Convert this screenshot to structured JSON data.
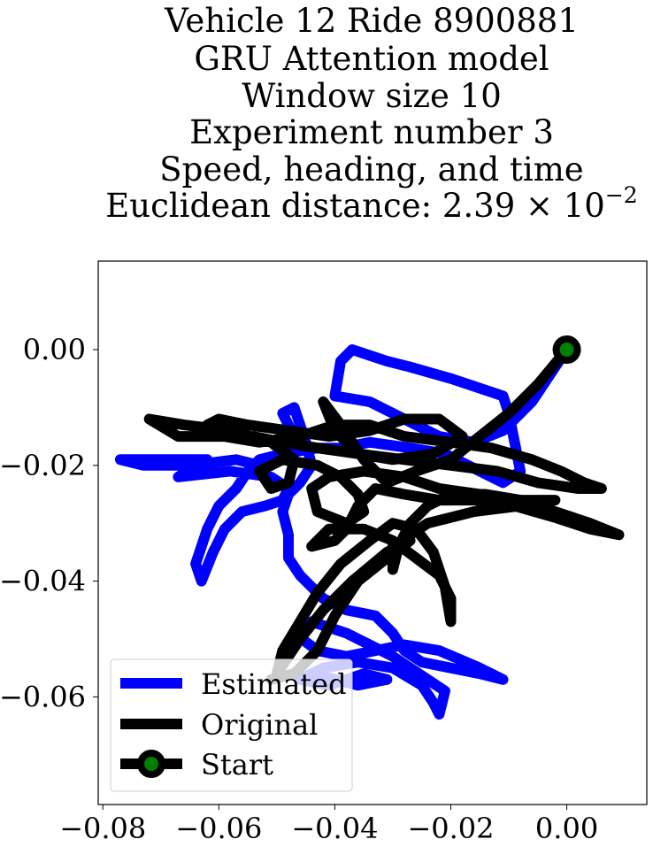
{
  "chart_data": {
    "type": "line",
    "title_lines": [
      "Vehicle 12 Ride 8900881",
      "GRU Attention model",
      "Window size 10",
      "Experiment number 3",
      "Speed, heading, and time"
    ],
    "title_distance_prefix": "Euclidean distance: 2.39 × 10",
    "title_distance_exponent": "−2",
    "xlim": [
      -0.0808,
      0.0138
    ],
    "ylim": [
      -0.0786,
      0.0153
    ],
    "xticks": [
      -0.08,
      -0.06,
      -0.04,
      -0.02,
      0.0
    ],
    "xtick_labels": [
      "−0.08",
      "−0.06",
      "−0.04",
      "−0.02",
      "0.00"
    ],
    "yticks": [
      0.0,
      -0.02,
      -0.04,
      -0.06
    ],
    "ytick_labels": [
      "0.00",
      "−0.02",
      "−0.04",
      "−0.06"
    ],
    "grid": false,
    "legend_position": "lower-left",
    "series": [
      {
        "name": "Estimated",
        "color": "#0000ff",
        "points": [
          [
            0.0,
            0.0
          ],
          [
            -0.002,
            -0.003
          ],
          [
            -0.006,
            -0.009
          ],
          [
            -0.011,
            -0.014
          ],
          [
            -0.016,
            -0.016
          ],
          [
            -0.022,
            -0.015
          ],
          [
            -0.026,
            -0.013
          ],
          [
            -0.034,
            -0.009
          ],
          [
            -0.04,
            -0.008
          ],
          [
            -0.039,
            -0.002
          ],
          [
            -0.037,
            0.0
          ],
          [
            -0.034,
            -0.001
          ],
          [
            -0.031,
            -0.002
          ],
          [
            -0.027,
            -0.003
          ],
          [
            -0.02,
            -0.005
          ],
          [
            -0.014,
            -0.007
          ],
          [
            -0.011,
            -0.008
          ],
          [
            -0.01,
            -0.011
          ],
          [
            -0.009,
            -0.016
          ],
          [
            -0.008,
            -0.021
          ],
          [
            -0.011,
            -0.023
          ],
          [
            -0.015,
            -0.021
          ],
          [
            -0.021,
            -0.018
          ],
          [
            -0.027,
            -0.017
          ],
          [
            -0.034,
            -0.016
          ],
          [
            -0.039,
            -0.017
          ],
          [
            -0.043,
            -0.017
          ],
          [
            -0.049,
            -0.018
          ],
          [
            -0.053,
            -0.019
          ],
          [
            -0.055,
            -0.021
          ],
          [
            -0.057,
            -0.024
          ],
          [
            -0.06,
            -0.027
          ],
          [
            -0.062,
            -0.031
          ],
          [
            -0.063,
            -0.034
          ],
          [
            -0.064,
            -0.037
          ],
          [
            -0.063,
            -0.04
          ],
          [
            -0.061,
            -0.035
          ],
          [
            -0.059,
            -0.031
          ],
          [
            -0.056,
            -0.028
          ],
          [
            -0.052,
            -0.027
          ],
          [
            -0.049,
            -0.026
          ],
          [
            -0.048,
            -0.024
          ],
          [
            -0.051,
            -0.022
          ],
          [
            -0.058,
            -0.021
          ],
          [
            -0.067,
            -0.022
          ],
          [
            -0.062,
            -0.019
          ],
          [
            -0.07,
            -0.019
          ],
          [
            -0.077,
            -0.019
          ],
          [
            -0.073,
            -0.02
          ],
          [
            -0.065,
            -0.02
          ],
          [
            -0.057,
            -0.019
          ],
          [
            -0.053,
            -0.02
          ],
          [
            -0.049,
            -0.019
          ],
          [
            -0.047,
            -0.015
          ],
          [
            -0.049,
            -0.011
          ],
          [
            -0.047,
            -0.01
          ],
          [
            -0.046,
            -0.013
          ],
          [
            -0.045,
            -0.016
          ],
          [
            -0.044,
            -0.02
          ],
          [
            -0.046,
            -0.023
          ],
          [
            -0.048,
            -0.025
          ],
          [
            -0.049,
            -0.028
          ],
          [
            -0.048,
            -0.032
          ],
          [
            -0.048,
            -0.036
          ],
          [
            -0.046,
            -0.039
          ],
          [
            -0.042,
            -0.043
          ],
          [
            -0.038,
            -0.045
          ],
          [
            -0.033,
            -0.046
          ],
          [
            -0.03,
            -0.049
          ],
          [
            -0.028,
            -0.052
          ],
          [
            -0.025,
            -0.054
          ],
          [
            -0.02,
            -0.055
          ],
          [
            -0.015,
            -0.056
          ],
          [
            -0.011,
            -0.057
          ],
          [
            -0.015,
            -0.055
          ],
          [
            -0.022,
            -0.052
          ],
          [
            -0.028,
            -0.051
          ],
          [
            -0.033,
            -0.052
          ],
          [
            -0.038,
            -0.053
          ],
          [
            -0.043,
            -0.052
          ],
          [
            -0.047,
            -0.049
          ],
          [
            -0.044,
            -0.047
          ],
          [
            -0.038,
            -0.049
          ],
          [
            -0.03,
            -0.053
          ],
          [
            -0.024,
            -0.057
          ],
          [
            -0.021,
            -0.059
          ],
          [
            -0.022,
            -0.063
          ],
          [
            -0.023,
            -0.061
          ],
          [
            -0.025,
            -0.058
          ],
          [
            -0.03,
            -0.055
          ],
          [
            -0.036,
            -0.054
          ],
          [
            -0.042,
            -0.055
          ],
          [
            -0.046,
            -0.057
          ],
          [
            -0.041,
            -0.058
          ],
          [
            -0.035,
            -0.056
          ],
          [
            -0.031,
            -0.057
          ],
          [
            -0.036,
            -0.058
          ],
          [
            -0.04,
            -0.057
          ],
          [
            -0.043,
            -0.056
          ]
        ]
      },
      {
        "name": "Original",
        "color": "#000000",
        "points": [
          [
            0.0,
            0.0
          ],
          [
            -0.005,
            -0.006
          ],
          [
            -0.01,
            -0.011
          ],
          [
            -0.015,
            -0.015
          ],
          [
            -0.02,
            -0.019
          ],
          [
            -0.026,
            -0.021
          ],
          [
            -0.031,
            -0.023
          ],
          [
            -0.035,
            -0.019
          ],
          [
            -0.039,
            -0.013
          ],
          [
            -0.042,
            -0.009
          ],
          [
            -0.04,
            -0.014
          ],
          [
            -0.036,
            -0.018
          ],
          [
            -0.03,
            -0.019
          ],
          [
            -0.023,
            -0.018
          ],
          [
            -0.018,
            -0.015
          ],
          [
            -0.022,
            -0.012
          ],
          [
            -0.028,
            -0.012
          ],
          [
            -0.034,
            -0.014
          ],
          [
            -0.041,
            -0.015
          ],
          [
            -0.048,
            -0.014
          ],
          [
            -0.055,
            -0.013
          ],
          [
            -0.06,
            -0.012
          ],
          [
            -0.062,
            -0.013
          ],
          [
            -0.059,
            -0.015
          ],
          [
            -0.053,
            -0.016
          ],
          [
            -0.046,
            -0.015
          ],
          [
            -0.04,
            -0.013
          ],
          [
            -0.034,
            -0.013
          ],
          [
            -0.028,
            -0.015
          ],
          [
            -0.02,
            -0.016
          ],
          [
            -0.013,
            -0.017
          ],
          [
            -0.006,
            -0.019
          ],
          [
            -0.001,
            -0.021
          ],
          [
            0.003,
            -0.023
          ],
          [
            0.006,
            -0.024
          ],
          [
            0.002,
            -0.024
          ],
          [
            -0.005,
            -0.023
          ],
          [
            -0.012,
            -0.021
          ],
          [
            -0.02,
            -0.02
          ],
          [
            -0.028,
            -0.019
          ],
          [
            -0.036,
            -0.018
          ],
          [
            -0.043,
            -0.017
          ],
          [
            -0.049,
            -0.016
          ],
          [
            -0.054,
            -0.015
          ],
          [
            -0.06,
            -0.015
          ],
          [
            -0.067,
            -0.015
          ],
          [
            -0.072,
            -0.012
          ],
          [
            -0.066,
            -0.013
          ],
          [
            -0.058,
            -0.014
          ],
          [
            -0.051,
            -0.016
          ],
          [
            -0.047,
            -0.019
          ],
          [
            -0.048,
            -0.023
          ],
          [
            -0.051,
            -0.024
          ],
          [
            -0.053,
            -0.021
          ],
          [
            -0.049,
            -0.019
          ],
          [
            -0.043,
            -0.02
          ],
          [
            -0.039,
            -0.022
          ],
          [
            -0.036,
            -0.025
          ],
          [
            -0.035,
            -0.028
          ],
          [
            -0.038,
            -0.03
          ],
          [
            -0.043,
            -0.028
          ],
          [
            -0.044,
            -0.024
          ],
          [
            -0.041,
            -0.022
          ],
          [
            -0.035,
            -0.021
          ],
          [
            -0.028,
            -0.022
          ],
          [
            -0.022,
            -0.024
          ],
          [
            -0.015,
            -0.025
          ],
          [
            -0.008,
            -0.026
          ],
          [
            -0.002,
            -0.026
          ],
          [
            -0.008,
            -0.027
          ],
          [
            -0.016,
            -0.028
          ],
          [
            -0.024,
            -0.03
          ],
          [
            -0.03,
            -0.034
          ],
          [
            -0.03,
            -0.038
          ],
          [
            -0.029,
            -0.034
          ],
          [
            -0.027,
            -0.03
          ],
          [
            -0.024,
            -0.027
          ],
          [
            -0.02,
            -0.025
          ],
          [
            -0.014,
            -0.025
          ],
          [
            -0.008,
            -0.026
          ],
          [
            -0.002,
            -0.028
          ],
          [
            0.004,
            -0.03
          ],
          [
            0.009,
            -0.032
          ],
          [
            0.004,
            -0.031
          ],
          [
            -0.002,
            -0.029
          ],
          [
            -0.009,
            -0.027
          ],
          [
            -0.016,
            -0.026
          ],
          [
            -0.022,
            -0.026
          ],
          [
            -0.028,
            -0.025
          ],
          [
            -0.033,
            -0.024
          ],
          [
            -0.036,
            -0.027
          ],
          [
            -0.038,
            -0.031
          ],
          [
            -0.04,
            -0.033
          ],
          [
            -0.044,
            -0.034
          ],
          [
            -0.041,
            -0.031
          ],
          [
            -0.035,
            -0.031
          ],
          [
            -0.03,
            -0.033
          ],
          [
            -0.026,
            -0.036
          ],
          [
            -0.022,
            -0.039
          ],
          [
            -0.02,
            -0.043
          ],
          [
            -0.02,
            -0.047
          ],
          [
            -0.021,
            -0.041
          ],
          [
            -0.023,
            -0.035
          ],
          [
            -0.026,
            -0.031
          ],
          [
            -0.03,
            -0.03
          ],
          [
            -0.034,
            -0.033
          ],
          [
            -0.039,
            -0.037
          ],
          [
            -0.043,
            -0.042
          ],
          [
            -0.046,
            -0.047
          ],
          [
            -0.049,
            -0.052
          ],
          [
            -0.05,
            -0.056
          ],
          [
            -0.046,
            -0.05
          ],
          [
            -0.042,
            -0.045
          ],
          [
            -0.037,
            -0.04
          ],
          [
            -0.031,
            -0.035
          ],
          [
            -0.027,
            -0.033
          ],
          [
            -0.031,
            -0.036
          ],
          [
            -0.036,
            -0.04
          ],
          [
            -0.04,
            -0.046
          ],
          [
            -0.043,
            -0.052
          ],
          [
            -0.047,
            -0.056
          ],
          [
            -0.051,
            -0.057
          ]
        ]
      }
    ],
    "start_marker": {
      "name": "Start",
      "point": [
        0.0,
        0.0
      ],
      "edge_color": "#000000",
      "face_color": "#008000"
    },
    "legend": {
      "estimated_label": "Estimated",
      "original_label": "Original",
      "start_label": "Start"
    }
  }
}
